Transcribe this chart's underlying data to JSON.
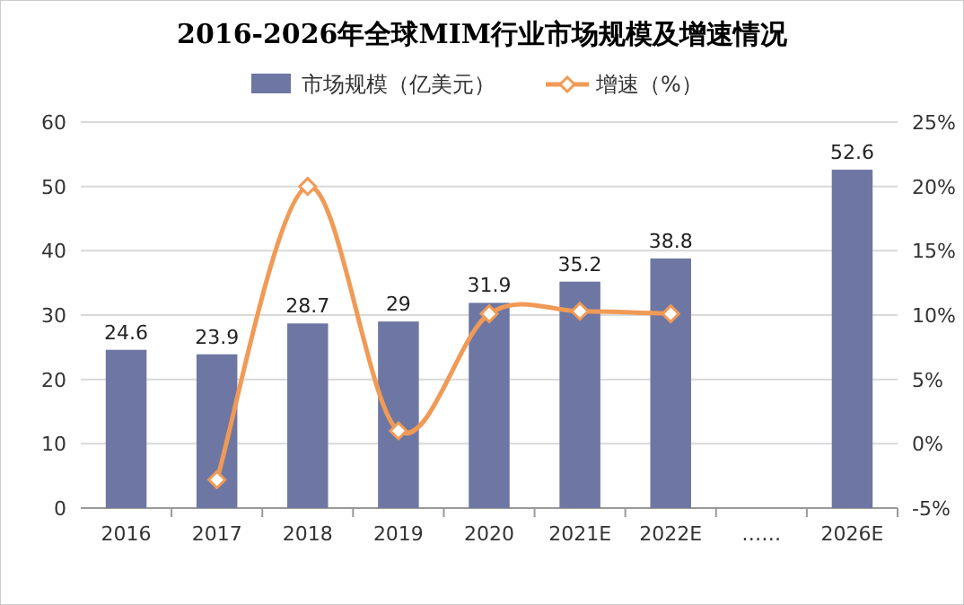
{
  "chart_data": {
    "type": "bar",
    "title": "2016-2026年全球MIM行业市场规模及增速情况",
    "categories": [
      "2016",
      "2017",
      "2018",
      "2019",
      "2020",
      "2021E",
      "2022E",
      "……",
      "2026E"
    ],
    "series": [
      {
        "name": "市场规模（亿美元）",
        "color": "#6e77a3",
        "values": [
          24.6,
          23.9,
          28.7,
          29,
          31.9,
          35.2,
          38.8,
          null,
          52.6
        ],
        "value_labels": [
          "24.6",
          "23.9",
          "28.7",
          "29",
          "31.9",
          "35.2",
          "38.8",
          null,
          "52.6"
        ]
      },
      {
        "name": "增速（%）",
        "type": "line",
        "axis": "y2",
        "color": "#f19a55",
        "marker": "diamond",
        "values": [
          null,
          -2.8,
          20,
          1,
          10.1,
          10.3,
          10.1,
          null,
          null
        ]
      }
    ],
    "ylim": [
      0,
      60
    ],
    "yticks": [
      0,
      10,
      20,
      30,
      40,
      50,
      60
    ],
    "y2lim": [
      -5,
      25
    ],
    "y2ticks": [
      {
        "value": -5,
        "label": "-5%"
      },
      {
        "value": 0,
        "label": "0%"
      },
      {
        "value": 5,
        "label": "5%"
      },
      {
        "value": 10,
        "label": "10%"
      },
      {
        "value": 15,
        "label": "15%"
      },
      {
        "value": 20,
        "label": "20%"
      },
      {
        "value": 25,
        "label": "25%"
      }
    ],
    "grid": "y",
    "legend": "top"
  }
}
